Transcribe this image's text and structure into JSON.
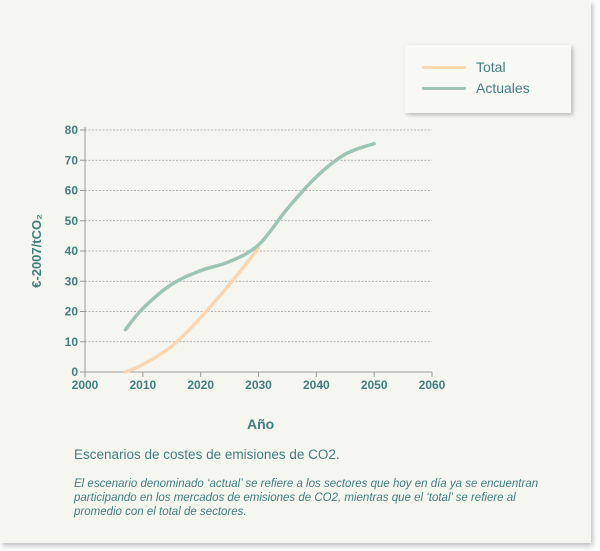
{
  "chart_data": {
    "type": "line",
    "title": "",
    "xlabel": "Año",
    "ylabel": "€-2007/tCO₂",
    "xlim": [
      2000,
      2060
    ],
    "ylim": [
      0,
      80
    ],
    "xticks": [
      2000,
      2010,
      2020,
      2030,
      2040,
      2050,
      2060
    ],
    "yticks": [
      0,
      10,
      20,
      30,
      40,
      50,
      60,
      70,
      80
    ],
    "grid": "horizontal dotted",
    "legend_position": "top-right",
    "series": [
      {
        "name": "Total",
        "color": "#fcd6b0",
        "x": [
          2007,
          2010,
          2015,
          2020,
          2025,
          2030
        ],
        "y": [
          0,
          2.5,
          8.5,
          18,
          29,
          41
        ]
      },
      {
        "name": "Actuales",
        "color": "#9dc5b6",
        "x": [
          2007,
          2010,
          2015,
          2020,
          2025,
          2030,
          2035,
          2040,
          2045,
          2050
        ],
        "y": [
          14,
          21,
          29,
          33.5,
          36.5,
          42,
          54,
          64.5,
          72,
          75.5
        ]
      }
    ]
  },
  "caption": "Escenarios de costes de emisiones de CO2.",
  "note": "El escenario denominado ‘actual’ se refiere a los sectores que hoy en día ya se encuentran participando en los mercados de emisiones de CO2, mientras que el ‘total’ se refiere al promedio con el total de sectores."
}
